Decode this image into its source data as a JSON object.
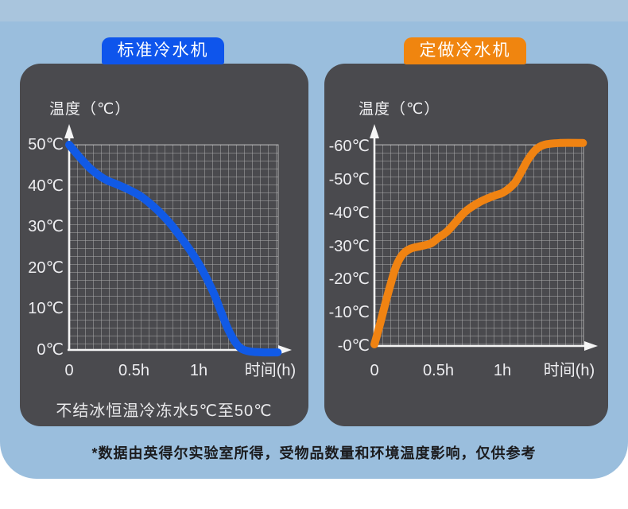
{
  "page": {
    "footer_note": "*数据由英得尔实验室所得，受物品数量和环境温度影响，仅供参考",
    "colors": {
      "background_blue": "#9abedd",
      "top_strip_blue": "#a9c5dd",
      "panel_gray": "#4a4a4e",
      "grid_line": "rgba(255,255,255,0.55)",
      "axis_white": "#f5f5f5",
      "standard_accent": "#0e55ec",
      "custom_accent": "#f0850f",
      "footer_text": "#1b1b1d"
    }
  },
  "chart_data": [
    {
      "type": "line",
      "name": "standard-chiller-cooling-curve",
      "badge_label": "标准冷水机",
      "badge_color": "#0e55ec",
      "y_axis_title": "温度（℃）",
      "x_axis_title": "时间(h)",
      "y_tick_labels": [
        "50℃",
        "40℃",
        "30℃",
        "20℃",
        "10℃",
        "0℃"
      ],
      "x_tick_labels": [
        "0",
        "0.5h",
        "1h"
      ],
      "x_tick_hours": [
        0,
        0.5,
        1
      ],
      "xlim_hours": [
        0,
        1.61
      ],
      "ylim_celsius": [
        0,
        50
      ],
      "grid": true,
      "legend": "none",
      "footnote": "不结冰恒温冷冻水5℃至50℃",
      "series": [
        {
          "name": "温度",
          "color": "#115ae6",
          "points_hours_celsius": [
            [
              0,
              50
            ],
            [
              0.08,
              47
            ],
            [
              0.16,
              44.3
            ],
            [
              0.24,
              42.3
            ],
            [
              0.3,
              41.2
            ],
            [
              0.38,
              40.2
            ],
            [
              0.47,
              38.9
            ],
            [
              0.55,
              37.5
            ],
            [
              0.62,
              35.8
            ],
            [
              0.7,
              33.5
            ],
            [
              0.78,
              30.8
            ],
            [
              0.86,
              27.5
            ],
            [
              0.94,
              24
            ],
            [
              1,
              21
            ],
            [
              1.06,
              17.5
            ],
            [
              1.12,
              13.5
            ],
            [
              1.17,
              9.5
            ],
            [
              1.22,
              5.5
            ],
            [
              1.28,
              2
            ],
            [
              1.33,
              0.3
            ],
            [
              1.4,
              -0.4
            ],
            [
              1.5,
              -0.6
            ],
            [
              1.61,
              -0.6
            ]
          ]
        }
      ]
    },
    {
      "type": "line",
      "name": "custom-chiller-cooling-curve",
      "badge_label": "定做冷水机",
      "badge_color": "#f0850f",
      "y_axis_title": "温度（℃）",
      "x_axis_title": "时间(h)",
      "y_tick_labels": [
        "-60℃",
        "-50℃",
        "-40℃",
        "-30℃",
        "-20℃",
        "-10℃",
        "-0℃"
      ],
      "x_tick_labels": [
        "0",
        "0.5h",
        "1h"
      ],
      "x_tick_hours": [
        0,
        0.5,
        1
      ],
      "xlim_hours": [
        0,
        1.63
      ],
      "ylim_celsius": [
        0,
        -60
      ],
      "grid": true,
      "legend": "none",
      "footnote": "",
      "series": [
        {
          "name": "温度",
          "color": "#f08312",
          "points_hours_celsius": [
            [
              0,
              -0.5
            ],
            [
              0.04,
              -6
            ],
            [
              0.08,
              -12
            ],
            [
              0.13,
              -19
            ],
            [
              0.17,
              -24
            ],
            [
              0.22,
              -27.5
            ],
            [
              0.28,
              -29.2
            ],
            [
              0.36,
              -30
            ],
            [
              0.44,
              -30.8
            ],
            [
              0.5,
              -32.5
            ],
            [
              0.57,
              -34.5
            ],
            [
              0.63,
              -37
            ],
            [
              0.7,
              -40
            ],
            [
              0.76,
              -41.8
            ],
            [
              0.82,
              -43.2
            ],
            [
              0.88,
              -44.3
            ],
            [
              0.94,
              -45.2
            ],
            [
              1,
              -46
            ],
            [
              1.05,
              -47.3
            ],
            [
              1.1,
              -49.2
            ],
            [
              1.15,
              -52.5
            ],
            [
              1.2,
              -56
            ],
            [
              1.26,
              -59
            ],
            [
              1.33,
              -60.5
            ],
            [
              1.45,
              -61
            ],
            [
              1.63,
              -61
            ]
          ]
        }
      ]
    }
  ]
}
